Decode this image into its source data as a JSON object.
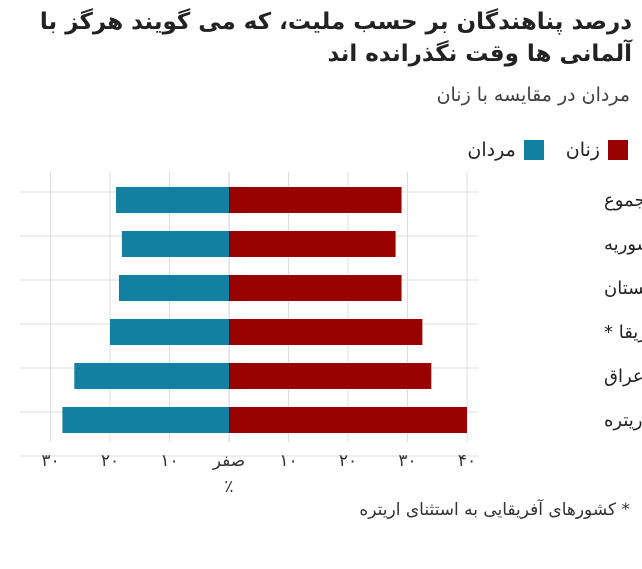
{
  "chart_data": {
    "type": "bar",
    "title": "درصد پناهندگان بر حسب ملیت، که می گویند هرگز با آلمانی ها وقت نگذرانده اند",
    "subtitle": "مردان در مقایسه با زنان",
    "xlabel": "٪",
    "categories": [
      "مجموع",
      "سوریه",
      "افغانستان",
      "بقیه آفریقا *",
      "عراق",
      "اریتره"
    ],
    "series": [
      {
        "name": "زنان",
        "color": "#990000",
        "values": [
          29,
          28,
          29,
          32.5,
          34,
          40
        ]
      },
      {
        "name": "مردان",
        "color": "#1380a1",
        "values": [
          19,
          18,
          18.5,
          20,
          26,
          28
        ]
      }
    ],
    "xlim": [
      -30,
      40
    ],
    "ticks": [
      -30,
      -20,
      -10,
      0,
      10,
      20,
      30,
      40
    ],
    "tick_labels": [
      "۳۰",
      "۲۰",
      "۱۰",
      "صفر",
      "۱۰",
      "۲۰",
      "۳۰",
      "۴۰"
    ],
    "legend": [
      "زنان",
      "مردان"
    ],
    "footnote": "* کشورهای آفریقایی به استثنای اریتره",
    "grid": true
  }
}
